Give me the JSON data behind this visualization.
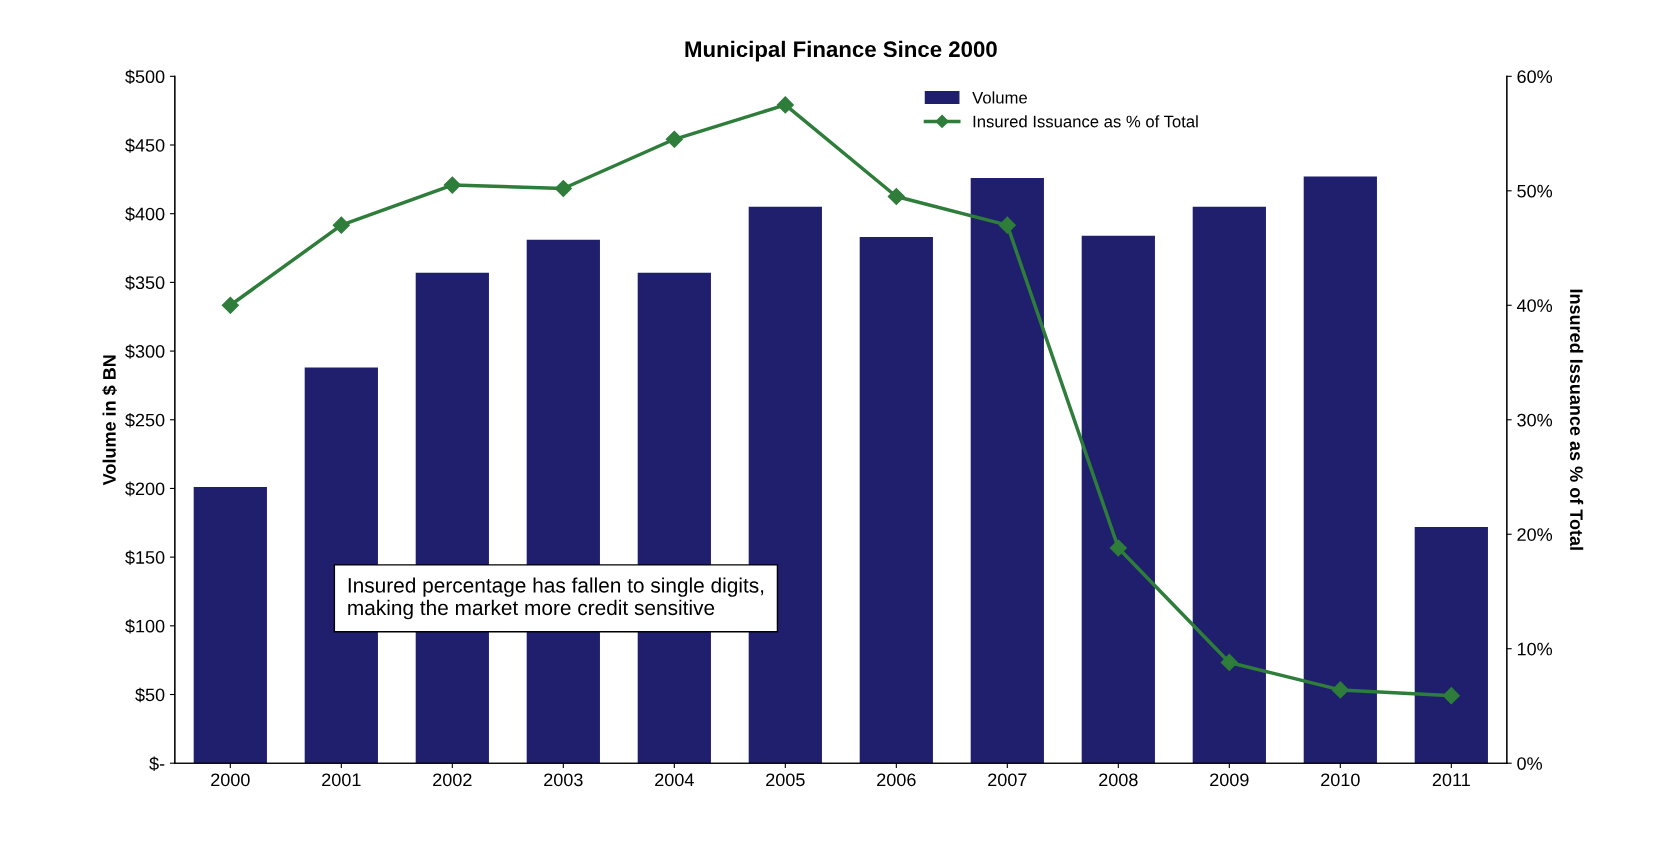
{
  "chart_data": {
    "type": "bar",
    "title": "Municipal Finance Since 2000",
    "ylabel": "Volume in $ BN",
    "y2label": "Insured Issuance as % of Total",
    "categories": [
      "2000",
      "2001",
      "2002",
      "2003",
      "2004",
      "2005",
      "2006",
      "2007",
      "2008",
      "2009",
      "2010",
      "2011"
    ],
    "series": [
      {
        "name": "Volume",
        "color": "#1f1f6e",
        "values": [
          201,
          288,
          357,
          381,
          357,
          405,
          383,
          426,
          384,
          405,
          427,
          172
        ]
      },
      {
        "name": "Insured Issuance as % of Total",
        "type": "line",
        "axis": "y2",
        "color": "#2e7d3a",
        "marker": "diamond",
        "values": [
          40,
          47,
          50.5,
          50.2,
          54.5,
          57.5,
          49.5,
          47,
          18.8,
          8.8,
          6.4,
          5.9
        ]
      }
    ],
    "ylim": [
      0,
      500
    ],
    "yticks": [
      {
        "value": 0,
        "label": "$-"
      },
      {
        "value": 50,
        "label": "$50"
      },
      {
        "value": 100,
        "label": "$100"
      },
      {
        "value": 150,
        "label": "$150"
      },
      {
        "value": 200,
        "label": "$200"
      },
      {
        "value": 250,
        "label": "$250"
      },
      {
        "value": 300,
        "label": "$300"
      },
      {
        "value": 350,
        "label": "$350"
      },
      {
        "value": 400,
        "label": "$400"
      },
      {
        "value": 450,
        "label": "$450"
      },
      {
        "value": 500,
        "label": "$500"
      }
    ],
    "y2lim": [
      0,
      60
    ],
    "y2ticks": [
      {
        "value": 0,
        "label": "0%"
      },
      {
        "value": 10,
        "label": "10%"
      },
      {
        "value": 20,
        "label": "20%"
      },
      {
        "value": 30,
        "label": "30%"
      },
      {
        "value": 40,
        "label": "40%"
      },
      {
        "value": 50,
        "label": "50%"
      },
      {
        "value": 60,
        "label": "60%"
      }
    ],
    "annotations": [
      {
        "text": "Insured percentage has fallen to single digits,\nmaking the market more credit sensitive"
      }
    ],
    "legend": "top right",
    "grid": false
  }
}
